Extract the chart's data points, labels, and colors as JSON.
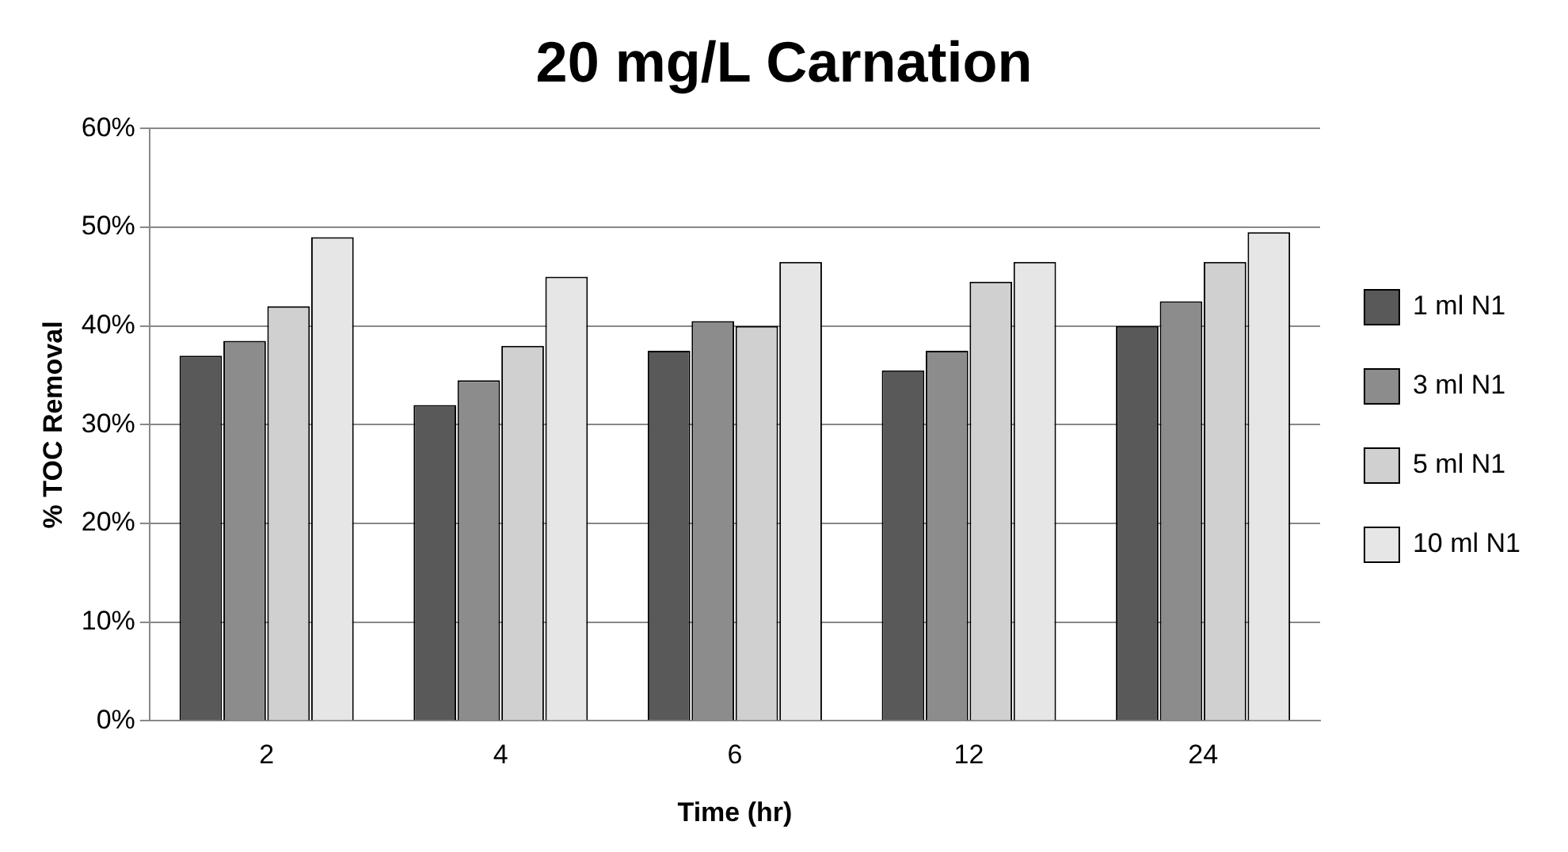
{
  "chart_data": {
    "type": "bar",
    "title": "20 mg/L Carnation",
    "xlabel": "Time (hr)",
    "ylabel": "% TOC Removal",
    "categories": [
      "2",
      "4",
      "6",
      "12",
      "24"
    ],
    "series": [
      {
        "name": "1 ml N1",
        "color": "#595959",
        "values": [
          37,
          32,
          37.5,
          35.5,
          40
        ]
      },
      {
        "name": "3 ml N1",
        "color": "#8c8c8c",
        "values": [
          38.5,
          34.5,
          40.5,
          37.5,
          42.5
        ]
      },
      {
        "name": "5 ml N1",
        "color": "#d0d0d0",
        "values": [
          42,
          38,
          40,
          44.5,
          46.5
        ]
      },
      {
        "name": "10 ml N1",
        "color": "#e6e6e6",
        "values": [
          49,
          45,
          46.5,
          46.5,
          49.5
        ]
      }
    ],
    "ylim": [
      0,
      60
    ],
    "yticks": [
      {
        "value": 0,
        "label": "0%"
      },
      {
        "value": 10,
        "label": "10%"
      },
      {
        "value": 20,
        "label": "20%"
      },
      {
        "value": 30,
        "label": "30%"
      },
      {
        "value": 40,
        "label": "40%"
      },
      {
        "value": 50,
        "label": "50%"
      },
      {
        "value": 60,
        "label": "60%"
      }
    ],
    "grid": "y",
    "legend": "right"
  }
}
